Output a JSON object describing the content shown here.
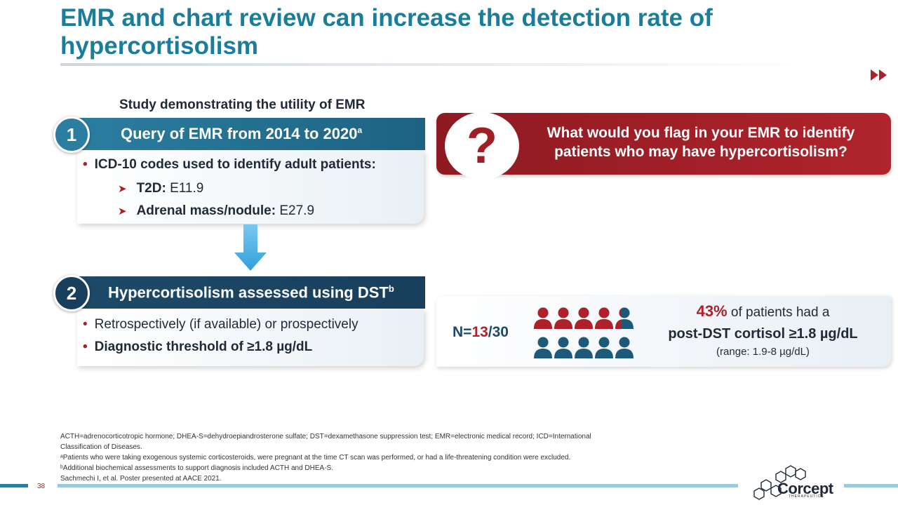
{
  "title": "EMR and chart review can increase the detection rate of hypercortisolism",
  "study_label": "Study demonstrating the utility of EMR",
  "step1": {
    "number": "1",
    "heading": "Query of EMR from 2014 to 2020",
    "heading_sup": "a",
    "bullet": "ICD-10 codes used to identify adult patients:",
    "items": [
      {
        "label": "T2D:",
        "code": "E11.9"
      },
      {
        "label": "Adrenal mass/nodule:",
        "code": "E27.9"
      }
    ]
  },
  "step2": {
    "number": "2",
    "heading": "Hypercortisolism assessed using DST",
    "heading_sup": "b",
    "bullets": [
      "Retrospectively (if available) or prospectively",
      "Diagnostic threshold of ≥1.8 µg/dL"
    ]
  },
  "question": {
    "mark": "?",
    "text": "What would you flag in your EMR to identify patients who may have hypercortisolism?"
  },
  "result": {
    "n_prefix": "N=",
    "n_positive": "13",
    "n_total_suffix": "/30",
    "people_positive": 13,
    "people_total": 30,
    "percent": "43%",
    "line1_rest": "of patients had a",
    "line2": "post-DST cortisol ≥1.8 µg/dL",
    "range": "(range: 1.9-8 µg/dL)"
  },
  "footnotes": [
    "ACTH=adrenocorticotropic hormone; DHEA-S=dehydroepiandrosterone sulfate; DST=dexamethasone suppression test; EMR=electronic medical record; ICD=International",
    "Classification of Diseases.",
    "ᵃPatients who were taking exogenous systemic corticosteroids, were pregnant at the time CT scan was performed, or had a life-threatening condition were excluded.",
    "ᵇAdditional biochemical assessments to support diagnosis included ACTH and DHEA-S.",
    "Sachmechi I, et al. Poster presented at AACE 2021."
  ],
  "page_number": "38",
  "logo": {
    "name": "Corcept",
    "tagline": "THERAPEUTICS"
  },
  "colors": {
    "teal": "#1a7d9c",
    "navy": "#183f5c",
    "red": "#b0202a"
  }
}
